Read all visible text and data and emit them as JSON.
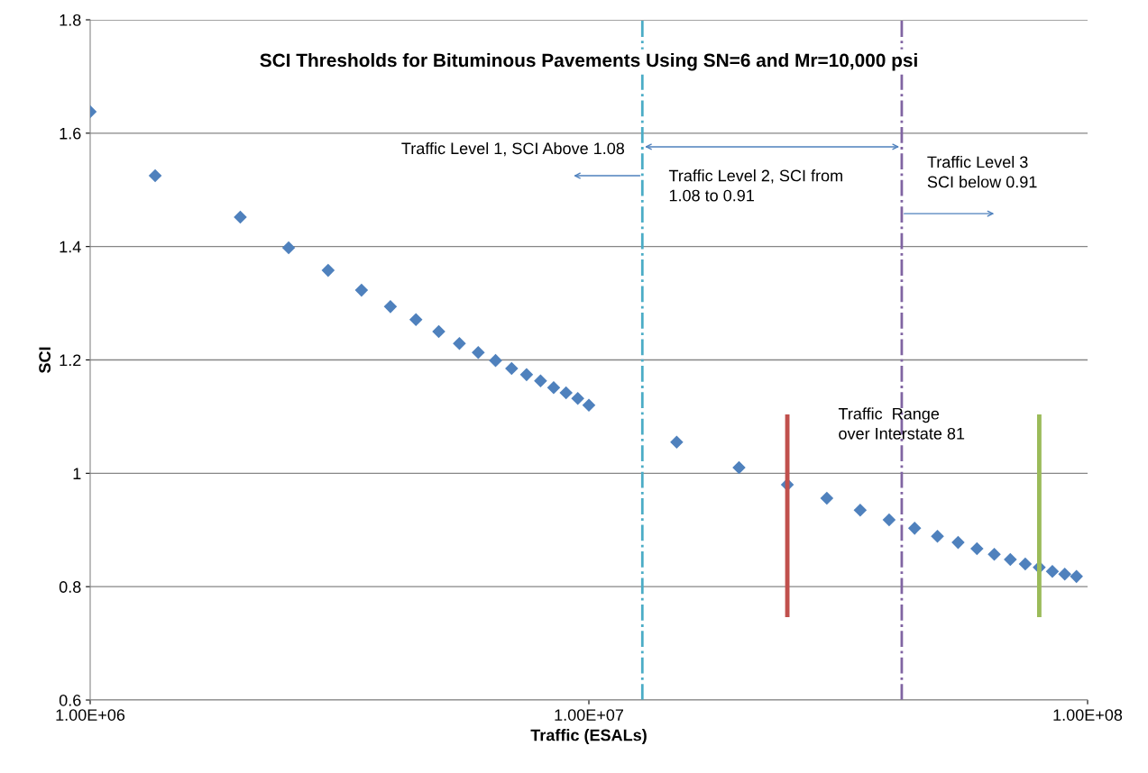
{
  "chart_data": {
    "type": "scatter",
    "title": "SCI Thresholds for Bituminous Pavements Using SN=6 and Mr=10,000 psi",
    "xlabel": "Traffic (ESALs)",
    "ylabel": "SCI",
    "log": "x",
    "xlim": [
      1000000,
      100000000
    ],
    "xticks": [
      {
        "value": 1000000,
        "label": "1.00E+06"
      },
      {
        "value": 10000000,
        "label": "1.00E+07"
      },
      {
        "value": 100000000,
        "label": "1.00E+08"
      }
    ],
    "ylim": [
      0.6,
      1.8
    ],
    "yticks": [
      0.6,
      0.8,
      1,
      1.2,
      1.4,
      1.6,
      1.8
    ],
    "grid": "y",
    "legend": false,
    "series": [
      {
        "color": "#4f81bd",
        "marker": "diamond",
        "x": [
          1000000,
          1350000,
          2000000,
          2500000,
          3000000,
          3500000,
          4000000,
          4500000,
          5000000,
          5500000,
          6000000,
          6500000,
          7000000,
          7500000,
          8000000,
          8500000,
          9000000,
          9500000,
          10000000,
          15000000,
          20000000,
          25000000,
          30000000,
          35000000,
          40000000,
          45000000,
          50000000,
          55000000,
          60000000,
          65000000,
          70000000,
          75000000,
          80000000,
          85000000,
          90000000,
          95000000
        ],
        "values": [
          1.638,
          1.525,
          1.452,
          1.398,
          1.358,
          1.323,
          1.294,
          1.271,
          1.25,
          1.229,
          1.213,
          1.199,
          1.185,
          1.174,
          1.163,
          1.151,
          1.142,
          1.132,
          1.12,
          1.055,
          1.01,
          0.98,
          0.956,
          0.935,
          0.918,
          0.903,
          0.889,
          0.878,
          0.867,
          0.857,
          0.848,
          0.84,
          0.834,
          0.827,
          0.822,
          0.818
        ]
      },
      {
        "type": "line",
        "color": "#c0504d",
        "marker": "none",
        "x": [
          25000000,
          25000000
        ],
        "values": [
          0.75,
          1.1
        ]
      },
      {
        "type": "line",
        "color": "#9bbb59",
        "marker": "none",
        "x": [
          80000000,
          80000000
        ],
        "values": [
          0.75,
          1.1
        ]
      }
    ],
    "ref_lines": [
      {
        "axis": "x",
        "value": 12800000,
        "color": "#4bacc6",
        "line_style": "dashdot"
      },
      {
        "axis": "x",
        "value": 42400000,
        "color": "#8064a2",
        "line_style": "dashdot"
      }
    ],
    "annotations": [
      "Traffic Level 1, SCI Above 1.08",
      "Traffic Level 2, SCI from\n1.08 to 0.91",
      "Traffic Level 3\nSCI below 0.91",
      "Traffic  Range\nover Interstate 81"
    ]
  }
}
